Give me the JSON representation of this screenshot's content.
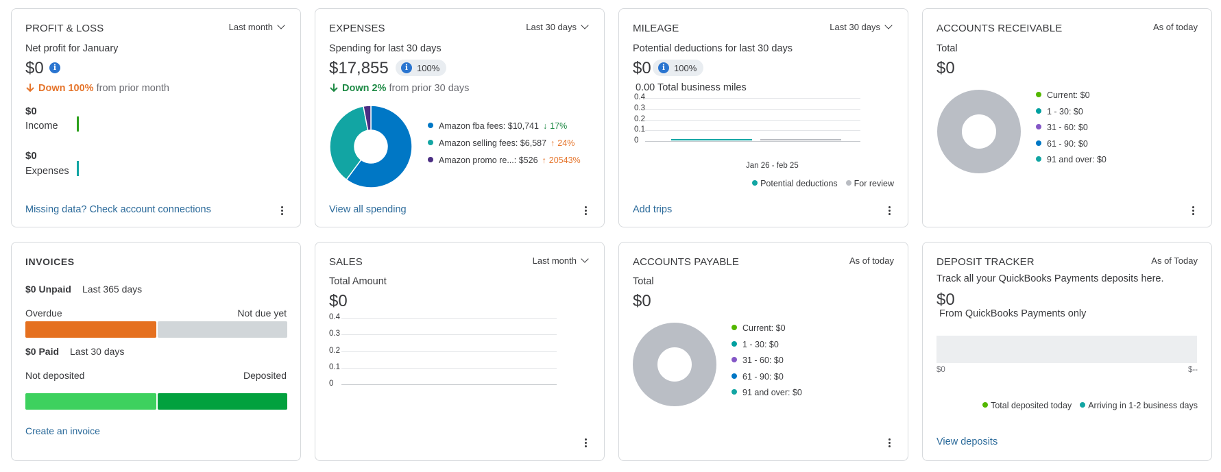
{
  "profit_loss": {
    "title": "PROFIT & LOSS",
    "period": "Last month",
    "subtitle": "Net profit for January",
    "amount": "$0",
    "change_prefix": "Down 100%",
    "change_suffix": "from prior month",
    "income_amount": "$0",
    "income_label": "Income",
    "expenses_amount": "$0",
    "expenses_label": "Expenses",
    "link": "Missing data? Check account connections"
  },
  "expenses": {
    "title": "EXPENSES",
    "period": "Last 30 days",
    "subtitle": "Spending for last 30 days",
    "amount": "$17,855",
    "pill": "100%",
    "change_prefix": "Down 2%",
    "change_suffix": "from prior 30 days",
    "items": [
      {
        "label": "Amazon fba fees: $10,741",
        "change": "17%",
        "direction": "down",
        "color": "#0077c5",
        "value": 10741
      },
      {
        "label": "Amazon selling fees: $6,587",
        "change": "24%",
        "direction": "up",
        "color": "#12a5a3",
        "value": 6587
      },
      {
        "label": "Amazon promo re...: $526",
        "change": "20543%",
        "direction": "up",
        "color": "#4b2e83",
        "value": 526
      }
    ],
    "link": "View all spending"
  },
  "mileage": {
    "title": "MILEAGE",
    "period": "Last 30 days",
    "subtitle": "Potential deductions for last 30 days",
    "amount": "$0",
    "pill": "100%",
    "miles": "0.00 Total business miles",
    "y_ticks": [
      "0.4",
      "0.3",
      "0.2",
      "0.1",
      "0"
    ],
    "x_label": "Jan 26 - feb 25",
    "legend": [
      {
        "label": "Potential deductions",
        "color": "#12a5a3"
      },
      {
        "label": "For review",
        "color": "#b9bcc2"
      }
    ],
    "link": "Add trips"
  },
  "ar": {
    "title": "ACCOUNTS RECEIVABLE",
    "period": "As of today",
    "subtitle": "Total",
    "amount": "$0",
    "legend": [
      {
        "label": "Current: $0",
        "color": "#53b700"
      },
      {
        "label": "1 - 30: $0",
        "color": "#00a0a0"
      },
      {
        "label": "31 - 60: $0",
        "color": "#8457c6"
      },
      {
        "label": "61 - 90: $0",
        "color": "#0077c5"
      },
      {
        "label": "91 and over: $0",
        "color": "#12a5a3"
      }
    ]
  },
  "invoices": {
    "title": "INVOICES",
    "unpaid_amount": "$0 Unpaid",
    "unpaid_period": "Last 365 days",
    "overdue_label": "Overdue",
    "not_due_label": "Not due yet",
    "paid_amount": "$0 Paid",
    "paid_period": "Last 30 days",
    "not_deposited_label": "Not deposited",
    "deposited_label": "Deposited",
    "link": "Create an invoice"
  },
  "sales": {
    "title": "SALES",
    "period": "Last month",
    "subtitle": "Total Amount",
    "amount": "$0",
    "y_ticks": [
      "0.4",
      "0.3",
      "0.2",
      "0.1",
      "0"
    ]
  },
  "ap": {
    "title": "ACCOUNTS PAYABLE",
    "period": "As of today",
    "subtitle": "Total",
    "amount": "$0",
    "legend": [
      {
        "label": "Current: $0",
        "color": "#53b700"
      },
      {
        "label": "1 - 30: $0",
        "color": "#00a0a0"
      },
      {
        "label": "31 - 60: $0",
        "color": "#8457c6"
      },
      {
        "label": "61 - 90: $0",
        "color": "#0077c5"
      },
      {
        "label": "91 and over: $0",
        "color": "#12a5a3"
      }
    ]
  },
  "deposit": {
    "title": "DEPOSIT TRACKER",
    "period": "As of Today",
    "subtitle": "Track all your QuickBooks Payments deposits here.",
    "amount": "$0",
    "note": "From QuickBooks Payments only",
    "axis_left": "$0",
    "axis_right": "$--",
    "legend": [
      {
        "label": "Total deposited today",
        "color": "#53b700"
      },
      {
        "label": "Arriving in 1-2 business days",
        "color": "#12a5a3"
      }
    ],
    "link": "View deposits"
  }
}
